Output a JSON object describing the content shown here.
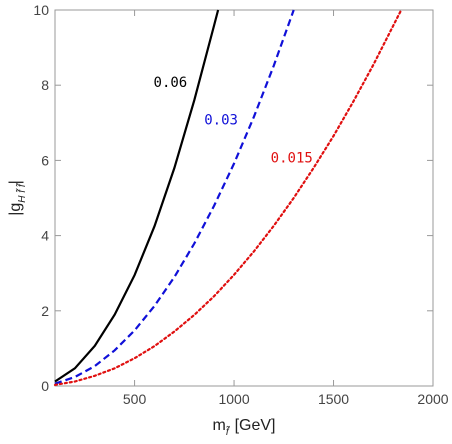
{
  "chart_data": {
    "type": "line",
    "xlabel": {
      "main": "m",
      "sub": "f̃",
      "unit": "[GeV]"
    },
    "ylabel": {
      "main": "|g",
      "sub": "H f̃ f̃",
      "close": "|"
    },
    "xlim": [
      100,
      2000
    ],
    "ylim": [
      0,
      10
    ],
    "xticks": [
      500,
      1000,
      1500,
      2000
    ],
    "yticks": [
      0,
      2,
      4,
      6,
      8,
      10
    ],
    "grid": false,
    "series": [
      {
        "name": "0.06",
        "color": "#000000",
        "dash": "solid",
        "label_at": {
          "x": 680,
          "y": 7.95
        },
        "x": [
          100,
          200,
          300,
          400,
          500,
          600,
          700,
          800,
          900,
          920
        ],
        "y": [
          0.12,
          0.47,
          1.07,
          1.9,
          2.95,
          4.25,
          5.8,
          7.6,
          9.6,
          10.0
        ]
      },
      {
        "name": "0.03",
        "color": "#1010d8",
        "dash": "dashed",
        "label_at": {
          "x": 935,
          "y": 6.95
        },
        "x": [
          100,
          200,
          300,
          400,
          500,
          600,
          700,
          800,
          900,
          1000,
          1100,
          1200,
          1300
        ],
        "y": [
          0.06,
          0.24,
          0.53,
          0.95,
          1.48,
          2.13,
          2.9,
          3.79,
          4.8,
          5.92,
          7.16,
          8.52,
          10.0
        ]
      },
      {
        "name": "0.015",
        "color": "#e01010",
        "dash": "dotted",
        "label_at": {
          "x": 1290,
          "y": 5.95
        },
        "x": [
          100,
          200,
          300,
          400,
          500,
          600,
          700,
          800,
          900,
          1000,
          1100,
          1200,
          1300,
          1400,
          1500,
          1600,
          1700,
          1840
        ],
        "y": [
          0.03,
          0.12,
          0.27,
          0.47,
          0.74,
          1.06,
          1.45,
          1.89,
          2.39,
          2.96,
          3.58,
          4.26,
          5.0,
          5.8,
          6.65,
          7.57,
          8.54,
          10.0
        ]
      }
    ]
  }
}
